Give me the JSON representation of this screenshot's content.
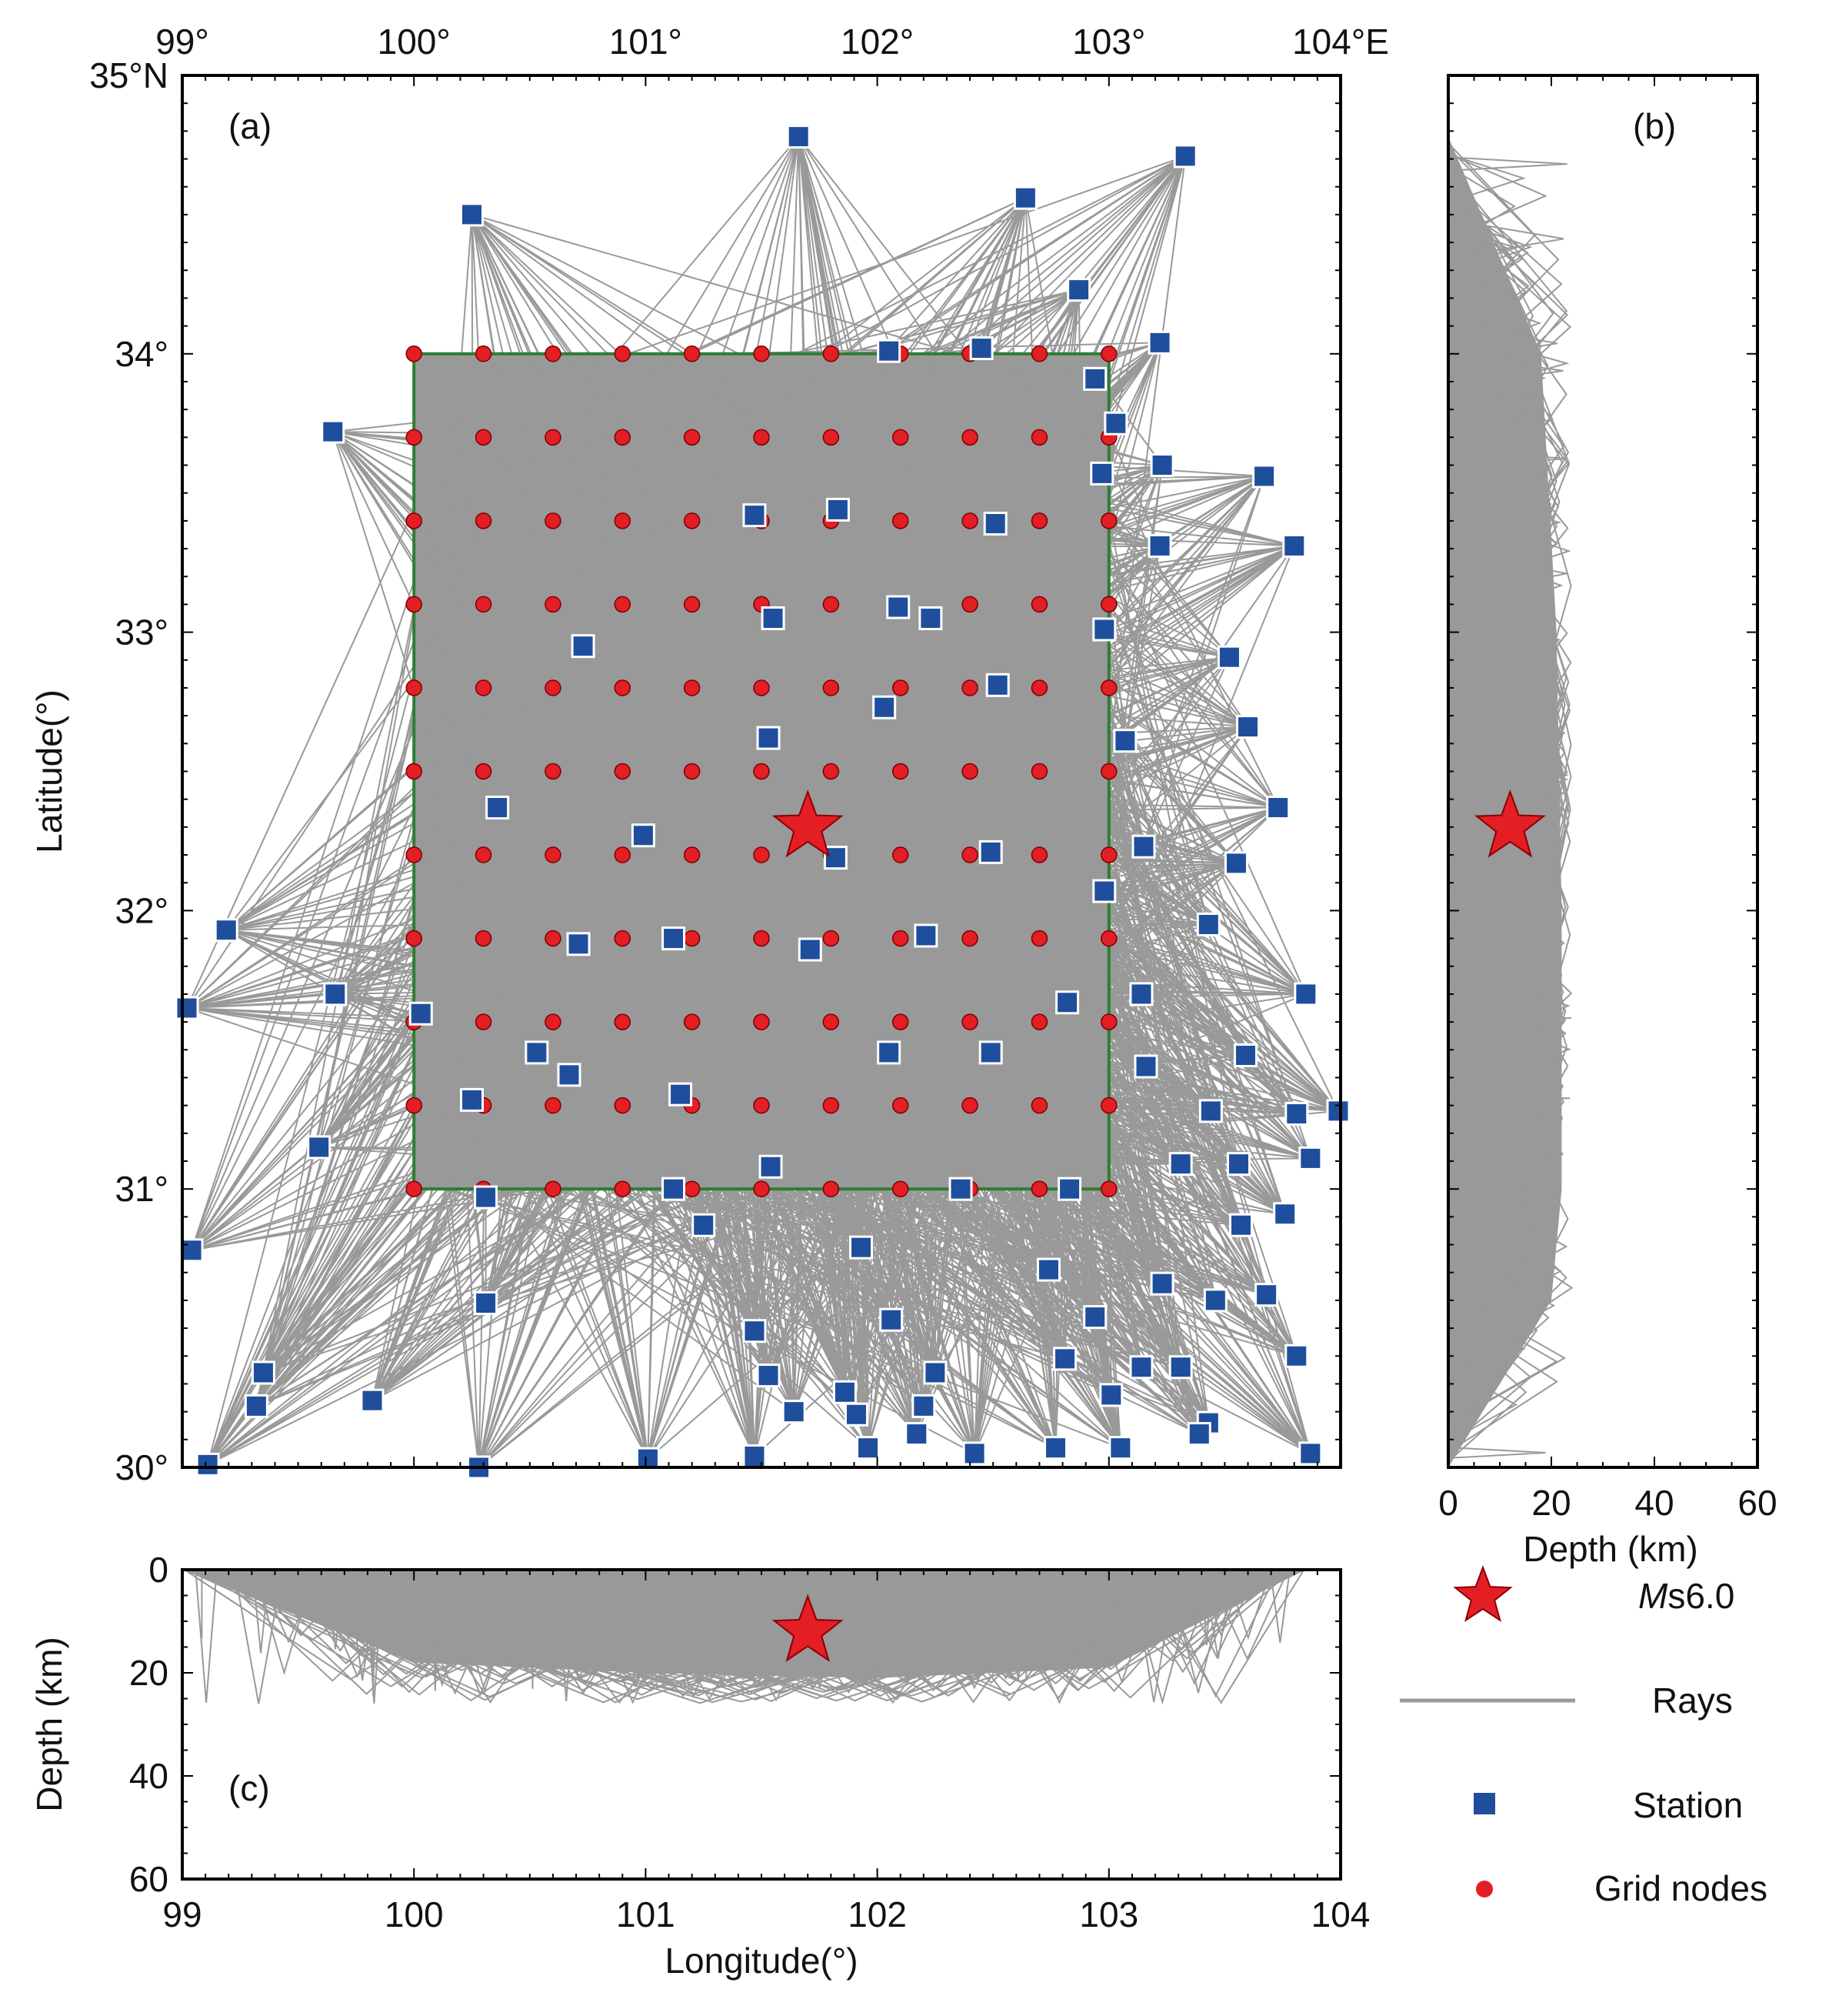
{
  "chart_data": [
    {
      "id": "a",
      "type": "scatter",
      "panel_label": "(a)",
      "xlabel": "",
      "ylabel": "Latitude(°)",
      "xlim": [
        99,
        104
      ],
      "ylim": [
        30,
        35
      ],
      "x_ticks": [
        {
          "value": 99,
          "label": "99°"
        },
        {
          "value": 100,
          "label": "100°"
        },
        {
          "value": 101,
          "label": "101°"
        },
        {
          "value": 102,
          "label": "102°"
        },
        {
          "value": 103,
          "label": "103°"
        },
        {
          "value": 104,
          "label": "104°E"
        }
      ],
      "y_ticks": [
        {
          "value": 30,
          "label": "30°"
        },
        {
          "value": 31,
          "label": "31°"
        },
        {
          "value": 32,
          "label": "32°"
        },
        {
          "value": 33,
          "label": "33°"
        },
        {
          "value": 34,
          "label": "34°"
        },
        {
          "value": 35,
          "label": "35°N"
        }
      ],
      "grid_box": {
        "lon": [
          100,
          103
        ],
        "lat": [
          31,
          34
        ],
        "color": "#2e7d32"
      },
      "grid_nodes": {
        "lon_start": 100,
        "lon_step": 0.3,
        "lon_count": 11,
        "lat_start": 31,
        "lat_step": 0.3,
        "lat_count": 11
      },
      "epicenter": {
        "lon": 101.7,
        "lat": 32.3
      },
      "stations": [
        [
          101.66,
          34.78
        ],
        [
          103.33,
          34.71
        ],
        [
          100.25,
          34.5
        ],
        [
          102.64,
          34.56
        ],
        [
          102.87,
          34.23
        ],
        [
          103.22,
          34.04
        ],
        [
          102.05,
          34.01
        ],
        [
          102.45,
          34.02
        ],
        [
          102.94,
          33.91
        ],
        [
          103.03,
          33.75
        ],
        [
          99.65,
          33.72
        ],
        [
          103.23,
          33.6
        ],
        [
          102.97,
          33.57
        ],
        [
          103.67,
          33.56
        ],
        [
          101.47,
          33.42
        ],
        [
          101.83,
          33.44
        ],
        [
          102.51,
          33.39
        ],
        [
          103.22,
          33.31
        ],
        [
          103.8,
          33.31
        ],
        [
          102.09,
          33.09
        ],
        [
          101.55,
          33.05
        ],
        [
          102.23,
          33.05
        ],
        [
          100.73,
          32.95
        ],
        [
          102.98,
          33.01
        ],
        [
          103.52,
          32.91
        ],
        [
          102.52,
          32.81
        ],
        [
          102.03,
          32.73
        ],
        [
          103.6,
          32.66
        ],
        [
          101.53,
          32.62
        ],
        [
          103.07,
          32.61
        ],
        [
          100.36,
          32.37
        ],
        [
          103.73,
          32.37
        ],
        [
          100.99,
          32.27
        ],
        [
          101.82,
          32.19
        ],
        [
          102.49,
          32.21
        ],
        [
          103.15,
          32.23
        ],
        [
          103.55,
          32.17
        ],
        [
          102.98,
          32.07
        ],
        [
          99.19,
          31.93
        ],
        [
          103.43,
          31.95
        ],
        [
          101.12,
          31.9
        ],
        [
          102.21,
          31.91
        ],
        [
          100.71,
          31.88
        ],
        [
          101.71,
          31.86
        ],
        [
          99.66,
          31.7
        ],
        [
          103.14,
          31.7
        ],
        [
          103.85,
          31.7
        ],
        [
          99.02,
          31.65
        ],
        [
          100.03,
          31.63
        ],
        [
          102.82,
          31.67
        ],
        [
          100.53,
          31.49
        ],
        [
          102.05,
          31.49
        ],
        [
          102.49,
          31.49
        ],
        [
          103.59,
          31.48
        ],
        [
          100.67,
          31.41
        ],
        [
          103.16,
          31.44
        ],
        [
          101.15,
          31.34
        ],
        [
          100.25,
          31.32
        ],
        [
          103.44,
          31.28
        ],
        [
          103.81,
          31.27
        ],
        [
          103.99,
          31.28
        ],
        [
          99.59,
          31.15
        ],
        [
          103.87,
          31.11
        ],
        [
          101.54,
          31.08
        ],
        [
          103.31,
          31.09
        ],
        [
          103.56,
          31.09
        ],
        [
          101.12,
          31.0
        ],
        [
          102.36,
          31.0
        ],
        [
          102.83,
          31.0
        ],
        [
          100.31,
          30.97
        ],
        [
          103.76,
          30.91
        ],
        [
          101.25,
          30.87
        ],
        [
          103.57,
          30.87
        ],
        [
          99.04,
          30.78
        ],
        [
          101.93,
          30.79
        ],
        [
          102.74,
          30.71
        ],
        [
          100.31,
          30.59
        ],
        [
          103.23,
          30.66
        ],
        [
          103.46,
          30.6
        ],
        [
          103.68,
          30.62
        ],
        [
          102.94,
          30.54
        ],
        [
          102.06,
          30.53
        ],
        [
          101.47,
          30.49
        ],
        [
          102.81,
          30.39
        ],
        [
          103.81,
          30.4
        ],
        [
          99.35,
          30.34
        ],
        [
          101.53,
          30.33
        ],
        [
          102.25,
          30.34
        ],
        [
          103.14,
          30.36
        ],
        [
          103.31,
          30.36
        ],
        [
          101.86,
          30.27
        ],
        [
          103.01,
          30.26
        ],
        [
          99.82,
          30.24
        ],
        [
          99.32,
          30.22
        ],
        [
          101.64,
          30.2
        ],
        [
          101.91,
          30.19
        ],
        [
          102.2,
          30.22
        ],
        [
          103.43,
          30.16
        ],
        [
          103.39,
          30.12
        ],
        [
          102.17,
          30.12
        ],
        [
          101.96,
          30.07
        ],
        [
          102.77,
          30.07
        ],
        [
          103.05,
          30.07
        ],
        [
          102.42,
          30.05
        ],
        [
          103.87,
          30.05
        ],
        [
          101.47,
          30.04
        ],
        [
          101.01,
          30.03
        ],
        [
          99.11,
          30.01
        ],
        [
          100.28,
          30.0
        ]
      ]
    },
    {
      "id": "b",
      "type": "line",
      "panel_label": "(b)",
      "xlabel": "Depth (km)",
      "ylabel": "",
      "xlim": [
        0,
        60
      ],
      "ylim": [
        30,
        35
      ],
      "x_ticks": [
        0,
        20,
        40,
        60
      ],
      "epicenter": {
        "depth": 12,
        "lat": 32.3
      }
    },
    {
      "id": "c",
      "type": "line",
      "panel_label": "(c)",
      "xlabel": "Longitude(°)",
      "ylabel": "Depth (km)",
      "xlim": [
        99,
        104
      ],
      "ylim": [
        0,
        60
      ],
      "x_ticks": [
        99,
        100,
        101,
        102,
        103,
        104
      ],
      "y_ticks": [
        0,
        20,
        40,
        60
      ],
      "epicenter": {
        "lon": 101.7,
        "depth": 12
      }
    }
  ],
  "legend": [
    {
      "symbol": "star",
      "label_italic": "M",
      "label": "s6.0",
      "color": "#e31e24"
    },
    {
      "symbol": "line",
      "label": "Rays",
      "color": "#999999"
    },
    {
      "symbol": "square",
      "label": "Station",
      "color": "#1f4e9c"
    },
    {
      "symbol": "circle",
      "label": "Grid nodes",
      "color": "#e31e24"
    }
  ],
  "colors": {
    "rays": "#999999",
    "station": "#1f4e9c",
    "grid_node": "#e31e24",
    "epicenter": "#e31e24",
    "grid_box": "#2e7d32"
  }
}
